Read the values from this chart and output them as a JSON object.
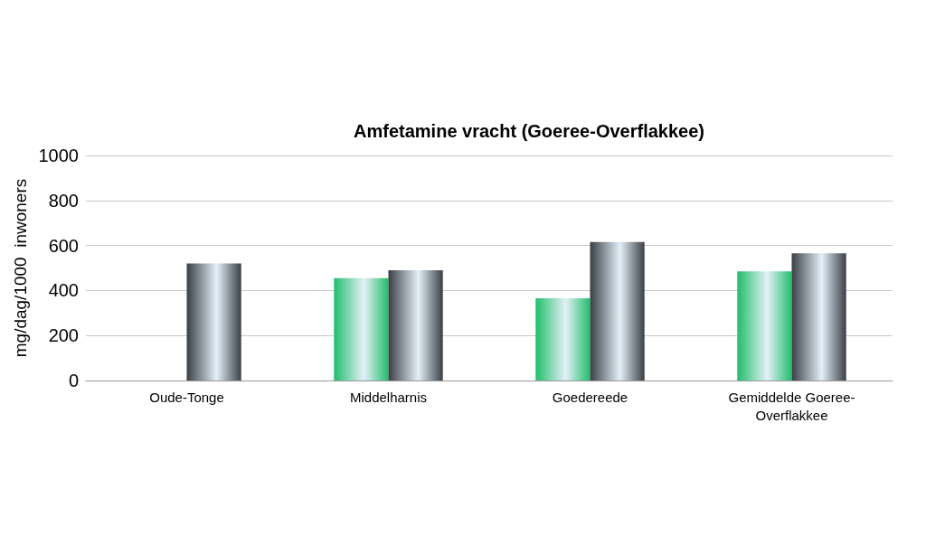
{
  "chart_data": {
    "type": "bar",
    "title": "Amfetamine vracht (Goeree-Overflakkee)",
    "ylabel": "mg/dag/1000  inwoners",
    "categories": [
      "Oude-Tonge",
      "Middelharnis",
      "Goedereede",
      "Gemiddelde Goeree-\nOverflakkee"
    ],
    "series": [
      {
        "color": "#1fbf6a",
        "values": [
          null,
          455,
          365,
          485
        ]
      },
      {
        "color": "#3a3f45",
        "values": [
          520,
          490,
          615,
          565
        ]
      }
    ],
    "ylim": [
      0,
      1000
    ],
    "yticks": [
      0,
      200,
      400,
      600,
      800,
      1000
    ],
    "grid": "y"
  }
}
